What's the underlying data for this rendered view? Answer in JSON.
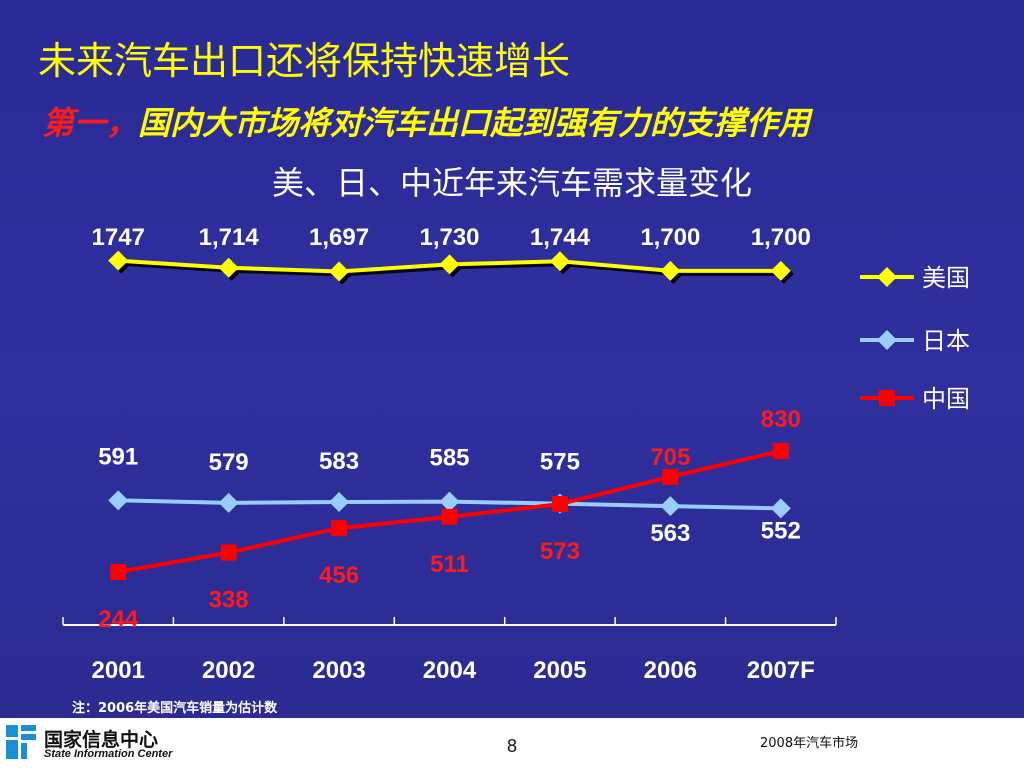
{
  "slide": {
    "title": "未来汽车出口还将保持快速增长",
    "subtitle_lead": "第一，",
    "subtitle_rest": "国内大市场将对汽车出口起到强有力的支撑作用",
    "note": "注：2006年美国汽车销量为估计数",
    "page_number": "8",
    "footer_right": "2008年汽车市场",
    "logo_cn": "国家信息中心",
    "logo_en": "State Information Center"
  },
  "chart_data": {
    "type": "line",
    "title": "美、日、中近年来汽车需求量变化",
    "xlabel": "",
    "ylabel": "",
    "categories": [
      "2001",
      "2002",
      "2003",
      "2004",
      "2005",
      "2006",
      "2007F"
    ],
    "legend_position": "right",
    "grid": false,
    "series": [
      {
        "name": "美国",
        "color": "#ffff00",
        "marker": "diamond",
        "values": [
          1747,
          1714,
          1697,
          1730,
          1744,
          1700,
          1700
        ],
        "labels": [
          "1747",
          "1,714",
          "1,697",
          "1,730",
          "1,744",
          "1,700",
          "1,700"
        ],
        "label_color": "#ffffff"
      },
      {
        "name": "日本",
        "color": "#99ccff",
        "marker": "diamond",
        "values": [
          591,
          579,
          583,
          585,
          575,
          563,
          552
        ],
        "labels": [
          "591",
          "579",
          "583",
          "585",
          "575",
          "563",
          "552"
        ],
        "label_color": "#ffffff"
      },
      {
        "name": "中国",
        "color": "#ff0000",
        "marker": "square",
        "values": [
          244,
          338,
          456,
          511,
          573,
          705,
          830
        ],
        "labels": [
          "244",
          "338",
          "456",
          "511",
          "573",
          "705",
          "830"
        ],
        "label_color": "#ff1a1a"
      }
    ]
  }
}
